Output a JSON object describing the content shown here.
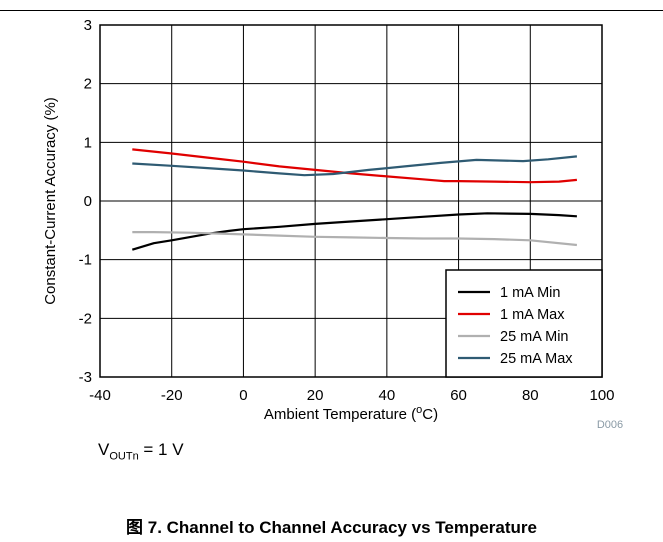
{
  "chart_data": {
    "type": "line",
    "xlabel_prefix": "Ambient Temperature (",
    "xlabel_sup": "o",
    "xlabel_suffix": "C)",
    "ylabel": "Constant-Current Accuracy (%)",
    "xlim": [
      -40,
      100
    ],
    "ylim": [
      -3,
      3
    ],
    "x_ticks": [
      -40,
      -20,
      0,
      20,
      40,
      60,
      80,
      100
    ],
    "y_ticks": [
      -3,
      -2,
      -1,
      0,
      1,
      2,
      3
    ],
    "grid": true,
    "legend_position": "bottom-right",
    "figure_id": "D006",
    "series": [
      {
        "name": "1 mA Min",
        "color": "#000000",
        "x": [
          -31,
          -25,
          -20,
          -10,
          -4,
          0,
          10,
          20,
          30,
          40,
          50,
          60,
          68,
          80,
          88,
          93
        ],
        "y": [
          -0.83,
          -0.72,
          -0.67,
          -0.56,
          -0.51,
          -0.48,
          -0.44,
          -0.39,
          -0.35,
          -0.31,
          -0.27,
          -0.23,
          -0.21,
          -0.22,
          -0.24,
          -0.26
        ]
      },
      {
        "name": "1 mA Max",
        "color": "#e00000",
        "x": [
          -31,
          -20,
          -10,
          0,
          10,
          20,
          30,
          40,
          50,
          56,
          60,
          70,
          80,
          88,
          93
        ],
        "y": [
          0.88,
          0.81,
          0.74,
          0.67,
          0.59,
          0.53,
          0.47,
          0.42,
          0.37,
          0.34,
          0.34,
          0.33,
          0.32,
          0.33,
          0.36
        ]
      },
      {
        "name": "25 mA Min",
        "color": "#b0b0b0",
        "x": [
          -31,
          -25,
          -15,
          0,
          10,
          20,
          30,
          40,
          50,
          60,
          70,
          80,
          93
        ],
        "y": [
          -0.53,
          -0.53,
          -0.54,
          -0.57,
          -0.59,
          -0.61,
          -0.62,
          -0.63,
          -0.64,
          -0.64,
          -0.65,
          -0.67,
          -0.75
        ]
      },
      {
        "name": "25 mA Max",
        "color": "#2f5b73",
        "x": [
          -31,
          -20,
          -10,
          0,
          10,
          17,
          25,
          35,
          45,
          55,
          65,
          78,
          85,
          93
        ],
        "y": [
          0.64,
          0.6,
          0.56,
          0.52,
          0.47,
          0.44,
          0.46,
          0.53,
          0.59,
          0.65,
          0.7,
          0.68,
          0.71,
          0.76
        ]
      }
    ]
  },
  "note": {
    "prefix": "V",
    "sub": "OUTn",
    "suffix": " = 1 V"
  },
  "caption": "图 7. Channel to Channel Accuracy vs Temperature"
}
